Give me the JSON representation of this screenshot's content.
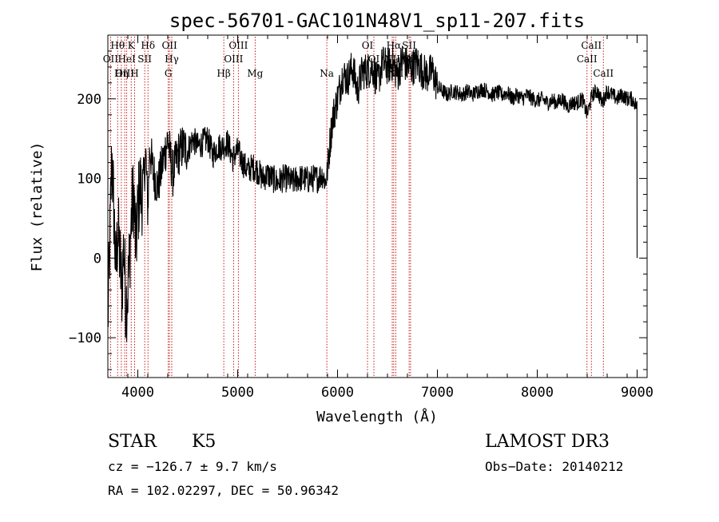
{
  "chart_data": {
    "type": "line",
    "title": "spec-56701-GAC101N48V1_sp11-207.fits",
    "xlabel": "Wavelength (Å)",
    "ylabel": "Flux (relative)",
    "xlim": [
      3700,
      9100
    ],
    "ylim": [
      -150,
      280
    ],
    "xticks": [
      4000,
      5000,
      6000,
      7000,
      8000,
      9000
    ],
    "yticks": [
      -100,
      0,
      100,
      200
    ],
    "grid": false,
    "spectrum_anchors": [
      [
        3700,
        -80
      ],
      [
        3720,
        20
      ],
      [
        3740,
        130
      ],
      [
        3760,
        60
      ],
      [
        3780,
        -20
      ],
      [
        3800,
        40
      ],
      [
        3820,
        0
      ],
      [
        3840,
        -40
      ],
      [
        3860,
        20
      ],
      [
        3880,
        -60
      ],
      [
        3900,
        -40
      ],
      [
        3920,
        10
      ],
      [
        3940,
        60
      ],
      [
        3960,
        80
      ],
      [
        3980,
        10
      ],
      [
        4000,
        60
      ],
      [
        4020,
        90
      ],
      [
        4040,
        80
      ],
      [
        4060,
        100
      ],
      [
        4080,
        130
      ],
      [
        4100,
        60
      ],
      [
        4120,
        140
      ],
      [
        4150,
        110
      ],
      [
        4200,
        90
      ],
      [
        4250,
        120
      ],
      [
        4300,
        150
      ],
      [
        4350,
        105
      ],
      [
        4400,
        130
      ],
      [
        4450,
        140
      ],
      [
        4500,
        135
      ],
      [
        4550,
        150
      ],
      [
        4600,
        140
      ],
      [
        4650,
        145
      ],
      [
        4700,
        150
      ],
      [
        4750,
        130
      ],
      [
        4800,
        140
      ],
      [
        4850,
        140
      ],
      [
        4900,
        145
      ],
      [
        4950,
        125
      ],
      [
        5000,
        135
      ],
      [
        5050,
        120
      ],
      [
        5100,
        110
      ],
      [
        5150,
        115
      ],
      [
        5200,
        110
      ],
      [
        5250,
        100
      ],
      [
        5300,
        105
      ],
      [
        5350,
        100
      ],
      [
        5400,
        95
      ],
      [
        5450,
        100
      ],
      [
        5500,
        100
      ],
      [
        5550,
        95
      ],
      [
        5600,
        100
      ],
      [
        5650,
        100
      ],
      [
        5700,
        98
      ],
      [
        5750,
        100
      ],
      [
        5800,
        100
      ],
      [
        5850,
        105
      ],
      [
        5880,
        95
      ],
      [
        5900,
        110
      ],
      [
        5920,
        140
      ],
      [
        5950,
        175
      ],
      [
        6000,
        200
      ],
      [
        6050,
        230
      ],
      [
        6100,
        225
      ],
      [
        6150,
        240
      ],
      [
        6200,
        210
      ],
      [
        6250,
        235
      ],
      [
        6300,
        235
      ],
      [
        6350,
        240
      ],
      [
        6400,
        220
      ],
      [
        6450,
        245
      ],
      [
        6500,
        240
      ],
      [
        6550,
        245
      ],
      [
        6600,
        230
      ],
      [
        6650,
        250
      ],
      [
        6700,
        240
      ],
      [
        6750,
        240
      ],
      [
        6800,
        245
      ],
      [
        6850,
        235
      ],
      [
        6900,
        230
      ],
      [
        6950,
        235
      ],
      [
        7000,
        215
      ],
      [
        7050,
        210
      ],
      [
        7100,
        205
      ],
      [
        7150,
        210
      ],
      [
        7200,
        208
      ],
      [
        7250,
        205
      ],
      [
        7300,
        210
      ],
      [
        7350,
        205
      ],
      [
        7400,
        210
      ],
      [
        7450,
        212
      ],
      [
        7500,
        210
      ],
      [
        7550,
        205
      ],
      [
        7600,
        208
      ],
      [
        7650,
        205
      ],
      [
        7700,
        208
      ],
      [
        7750,
        200
      ],
      [
        7800,
        205
      ],
      [
        7850,
        200
      ],
      [
        7900,
        205
      ],
      [
        7950,
        200
      ],
      [
        8000,
        198
      ],
      [
        8050,
        200
      ],
      [
        8100,
        195
      ],
      [
        8150,
        198
      ],
      [
        8200,
        195
      ],
      [
        8250,
        200
      ],
      [
        8300,
        190
      ],
      [
        8350,
        195
      ],
      [
        8400,
        195
      ],
      [
        8450,
        200
      ],
      [
        8500,
        180
      ],
      [
        8550,
        205
      ],
      [
        8600,
        210
      ],
      [
        8650,
        195
      ],
      [
        8700,
        210
      ],
      [
        8750,
        205
      ],
      [
        8800,
        200
      ],
      [
        8850,
        205
      ],
      [
        8900,
        200
      ],
      [
        8950,
        200
      ],
      [
        9000,
        190
      ]
    ],
    "spectral_lines": [
      {
        "label": "Hθ",
        "wave": 3798,
        "row": 0
      },
      {
        "label": "K",
        "wave": 3934,
        "row": 0
      },
      {
        "label": "Hδ",
        "wave": 4102,
        "row": 0
      },
      {
        "label": "OII",
        "wave": 4317,
        "row": 0
      },
      {
        "label": "OIII",
        "wave": 5007,
        "row": 0
      },
      {
        "label": "OI",
        "wave": 6300,
        "row": 0
      },
      {
        "label": "Hα",
        "wave": 6563,
        "row": 0
      },
      {
        "label": "SII",
        "wave": 6717,
        "row": 0
      },
      {
        "label": "CaII",
        "wave": 8542,
        "row": 0
      },
      {
        "label": "OII",
        "wave": 3727,
        "row": 1
      },
      {
        "label": "HeI",
        "wave": 3889,
        "row": 1
      },
      {
        "label": "SII",
        "wave": 4069,
        "row": 1
      },
      {
        "label": "Hγ",
        "wave": 4340,
        "row": 1
      },
      {
        "label": "OIII",
        "wave": 4959,
        "row": 1
      },
      {
        "label": "OI",
        "wave": 6364,
        "row": 1
      },
      {
        "label": "NII",
        "wave": 6548,
        "row": 1
      },
      {
        "label": "SII",
        "wave": 6731,
        "row": 1
      },
      {
        "label": "CaII",
        "wave": 8498,
        "row": 1
      },
      {
        "label": "OIII",
        "wave": 3869,
        "row": 2
      },
      {
        "label": "Hη",
        "wave": 3835,
        "row": 2
      },
      {
        "label": "H",
        "wave": 3968,
        "row": 2
      },
      {
        "label": "G",
        "wave": 4305,
        "row": 2
      },
      {
        "label": "Hβ",
        "wave": 4861,
        "row": 2
      },
      {
        "label": "Mg",
        "wave": 5175,
        "row": 2
      },
      {
        "label": "Na",
        "wave": 5893,
        "row": 2
      },
      {
        "label": "NII",
        "wave": 6583,
        "row": 2
      },
      {
        "label": "CaII",
        "wave": 8662,
        "row": 2
      }
    ]
  },
  "info": {
    "obj_class": "STAR",
    "subclass": "K5",
    "survey": "LAMOST DR3",
    "cz": "cz = −126.7 ± 9.7 km/s",
    "obs_date": "Obs−Date: 20140212",
    "radec": "RA = 102.02297, DEC =  50.96342"
  }
}
